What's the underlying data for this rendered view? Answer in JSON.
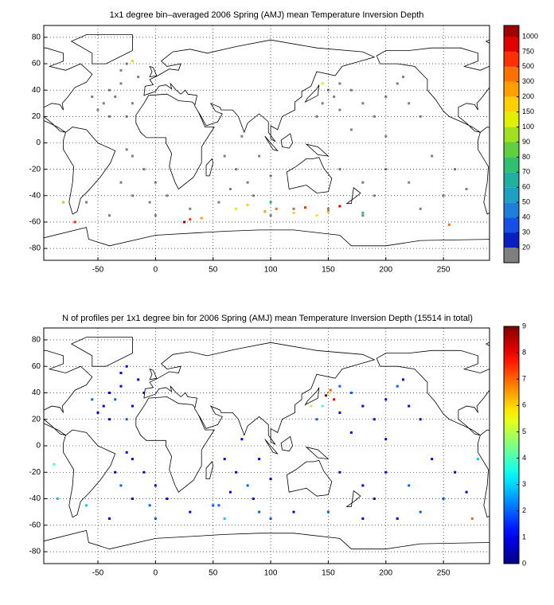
{
  "chart_data": [
    {
      "type": "map",
      "title": "1x1 degree bin–averaged 2006 Spring (AMJ) mean Temperature Inversion Depth",
      "xlim": [
        -97,
        290
      ],
      "ylim": [
        -89,
        89
      ],
      "xticks": [
        -50,
        0,
        50,
        100,
        150,
        200,
        250
      ],
      "yticks": [
        -80,
        -60,
        -40,
        -20,
        0,
        20,
        40,
        60,
        80
      ],
      "grid": true,
      "colorbar": {
        "scale": "discrete",
        "ticks": [
          20,
          30,
          40,
          50,
          60,
          70,
          80,
          90,
          100,
          150,
          200,
          300,
          500,
          750,
          1000
        ],
        "colors": [
          "#7f7f7f",
          "#0a1fbf",
          "#1450e8",
          "#1e7fd8",
          "#1fa0c0",
          "#20b0a0",
          "#30c070",
          "#60d040",
          "#a0e020",
          "#e0f000",
          "#ffd000",
          "#ffa000",
          "#ff7000",
          "#ff3000",
          "#e00000",
          "#a00000"
        ]
      },
      "cells": [
        [
          -40,
          40,
          10
        ],
        [
          -35,
          35,
          10
        ],
        [
          -30,
          45,
          10
        ],
        [
          -45,
          30,
          10
        ],
        [
          -20,
          30,
          10
        ],
        [
          -25,
          20,
          10
        ],
        [
          -40,
          20,
          10
        ],
        [
          -50,
          25,
          10
        ],
        [
          -55,
          35,
          10
        ],
        [
          -30,
          55,
          10
        ],
        [
          -15,
          50,
          10
        ],
        [
          -25,
          60,
          10
        ],
        [
          -20,
          -10,
          10
        ],
        [
          -10,
          -20,
          10
        ],
        [
          0,
          -30,
          10
        ],
        [
          -30,
          -30,
          10
        ],
        [
          -20,
          -40,
          10
        ],
        [
          -5,
          -45,
          10
        ],
        [
          10,
          -40,
          10
        ],
        [
          -25,
          -5,
          10
        ],
        [
          60,
          -10,
          10
        ],
        [
          70,
          -20,
          10
        ],
        [
          80,
          -30,
          10
        ],
        [
          90,
          -10,
          10
        ],
        [
          100,
          -25,
          10
        ],
        [
          65,
          -35,
          10
        ],
        [
          75,
          5,
          10
        ],
        [
          55,
          -45,
          10
        ],
        [
          85,
          -40,
          10
        ],
        [
          150,
          40,
          10
        ],
        [
          155,
          35,
          10
        ],
        [
          145,
          30,
          10
        ],
        [
          160,
          45,
          10
        ],
        [
          170,
          40,
          10
        ],
        [
          180,
          30,
          10
        ],
        [
          190,
          20,
          10
        ],
        [
          200,
          35,
          10
        ],
        [
          210,
          45,
          10
        ],
        [
          220,
          30,
          10
        ],
        [
          230,
          20,
          10
        ],
        [
          200,
          5,
          10
        ],
        [
          170,
          10,
          10
        ],
        [
          140,
          20,
          10
        ],
        [
          160,
          25,
          10
        ],
        [
          215,
          50,
          10
        ],
        [
          240,
          40,
          10
        ],
        [
          160,
          -20,
          10
        ],
        [
          180,
          -30,
          10
        ],
        [
          200,
          -20,
          10
        ],
        [
          220,
          -30,
          10
        ],
        [
          240,
          -10,
          10
        ],
        [
          260,
          -20,
          10
        ],
        [
          250,
          -40,
          10
        ],
        [
          190,
          -40,
          10
        ],
        [
          270,
          -35,
          10
        ],
        [
          230,
          -50,
          10
        ],
        [
          180,
          -55,
          10
        ],
        [
          150,
          -50,
          10
        ],
        [
          120,
          -50,
          10
        ],
        [
          100,
          -55,
          10
        ],
        [
          30,
          -50,
          10
        ],
        [
          0,
          -55,
          10
        ],
        [
          -40,
          -55,
          10
        ],
        [
          -60,
          -45,
          10
        ],
        [
          80,
          -47,
          160
        ],
        [
          95,
          -52,
          250
        ],
        [
          105,
          -50,
          400
        ],
        [
          120,
          -53,
          180
        ],
        [
          130,
          -49,
          600
        ],
        [
          140,
          -55,
          130
        ],
        [
          150,
          -52,
          220
        ],
        [
          160,
          -48,
          850
        ],
        [
          30,
          -58,
          600
        ],
        [
          25,
          -60,
          1200
        ],
        [
          40,
          -57,
          250
        ],
        [
          -70,
          -60,
          500
        ],
        [
          255,
          -62,
          400
        ],
        [
          70,
          -50,
          120
        ],
        [
          -80,
          -45,
          95
        ],
        [
          180,
          -53,
          75
        ],
        [
          100,
          -45,
          60
        ],
        [
          -20,
          62,
          160
        ],
        [
          145,
          45,
          100
        ]
      ]
    },
    {
      "type": "map",
      "title": "N of profiles per 1x1 degree bin for 2006 Spring (AMJ) mean Temperature Inversion Depth  (15514 in total)",
      "xlim": [
        -97,
        290
      ],
      "ylim": [
        -89,
        89
      ],
      "xticks": [
        -50,
        0,
        50,
        100,
        150,
        200,
        250
      ],
      "yticks": [
        -80,
        -60,
        -40,
        -20,
        0,
        20,
        40,
        60,
        80
      ],
      "grid": true,
      "colorbar": {
        "scale": "jet",
        "ylim": [
          0,
          9
        ],
        "yticks": [
          0,
          1,
          2,
          3,
          4,
          5,
          6,
          7,
          8,
          9
        ]
      },
      "cells": [
        [
          -40,
          40,
          1
        ],
        [
          -35,
          35,
          2
        ],
        [
          -30,
          45,
          1
        ],
        [
          -45,
          30,
          1
        ],
        [
          -20,
          30,
          1
        ],
        [
          -25,
          20,
          2
        ],
        [
          -40,
          20,
          1
        ],
        [
          -50,
          25,
          1
        ],
        [
          -55,
          35,
          2
        ],
        [
          -30,
          55,
          1
        ],
        [
          -15,
          50,
          1
        ],
        [
          -25,
          60,
          1
        ],
        [
          -60,
          55,
          1
        ],
        [
          -10,
          40,
          1
        ],
        [
          -20,
          -10,
          1
        ],
        [
          -10,
          -20,
          1
        ],
        [
          0,
          -30,
          1
        ],
        [
          -30,
          -30,
          2
        ],
        [
          -20,
          -40,
          1
        ],
        [
          -5,
          -45,
          2
        ],
        [
          10,
          -40,
          1
        ],
        [
          -25,
          -5,
          1
        ],
        [
          -35,
          -20,
          1
        ],
        [
          60,
          -10,
          1
        ],
        [
          70,
          -20,
          1
        ],
        [
          80,
          -30,
          2
        ],
        [
          90,
          -10,
          1
        ],
        [
          100,
          -25,
          1
        ],
        [
          65,
          -35,
          1
        ],
        [
          75,
          5,
          1
        ],
        [
          55,
          -45,
          2
        ],
        [
          85,
          -40,
          1
        ],
        [
          60,
          -55,
          3
        ],
        [
          90,
          -50,
          2
        ],
        [
          150,
          40,
          6
        ],
        [
          155,
          35,
          8
        ],
        [
          145,
          30,
          4
        ],
        [
          160,
          45,
          2
        ],
        [
          170,
          40,
          2
        ],
        [
          180,
          30,
          1
        ],
        [
          190,
          20,
          1
        ],
        [
          200,
          35,
          1
        ],
        [
          210,
          45,
          2
        ],
        [
          220,
          30,
          1
        ],
        [
          230,
          20,
          1
        ],
        [
          200,
          5,
          1
        ],
        [
          170,
          10,
          1
        ],
        [
          140,
          20,
          2
        ],
        [
          160,
          25,
          1
        ],
        [
          215,
          50,
          1
        ],
        [
          240,
          40,
          1
        ],
        [
          148,
          38,
          9
        ],
        [
          152,
          42,
          7
        ],
        [
          135,
          30,
          5
        ],
        [
          160,
          -20,
          1
        ],
        [
          180,
          -30,
          1
        ],
        [
          200,
          -20,
          1
        ],
        [
          220,
          -30,
          2
        ],
        [
          240,
          -10,
          1
        ],
        [
          260,
          -20,
          1
        ],
        [
          250,
          -40,
          2
        ],
        [
          190,
          -40,
          1
        ],
        [
          270,
          -35,
          1
        ],
        [
          230,
          -50,
          2
        ],
        [
          180,
          -55,
          1
        ],
        [
          150,
          -50,
          2
        ],
        [
          120,
          -50,
          1
        ],
        [
          100,
          -55,
          2
        ],
        [
          30,
          -50,
          1
        ],
        [
          0,
          -55,
          2
        ],
        [
          -40,
          -55,
          1
        ],
        [
          -60,
          -45,
          3
        ],
        [
          -88,
          -14,
          4
        ],
        [
          -85,
          -40,
          3
        ],
        [
          275,
          -55,
          7
        ],
        [
          280,
          -10,
          3
        ],
        [
          210,
          -55,
          1
        ],
        [
          50,
          -45,
          2
        ]
      ]
    }
  ]
}
